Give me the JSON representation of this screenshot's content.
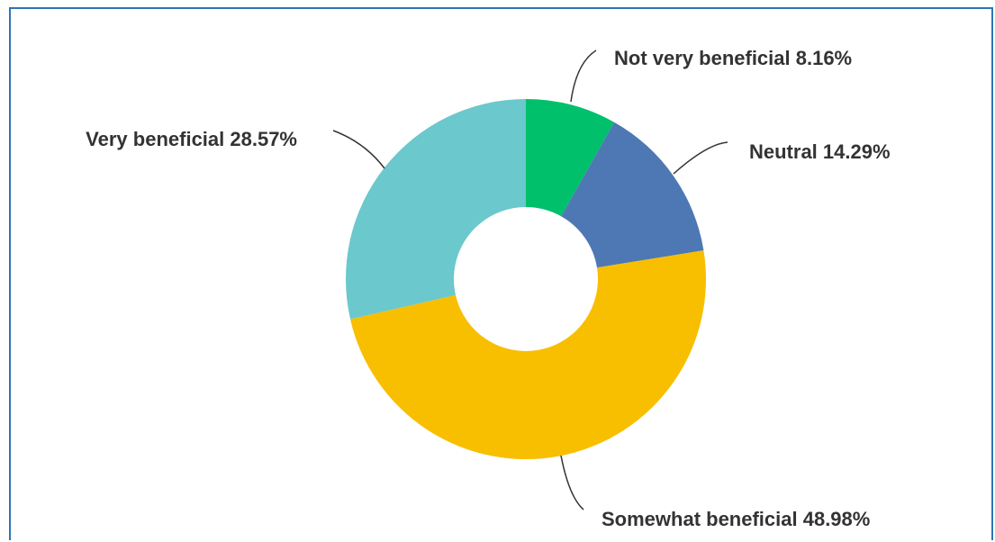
{
  "chart_data": {
    "type": "pie",
    "donut": true,
    "slices": [
      {
        "label": "Not very beneficial",
        "value": 8.16,
        "value_text": "8.16%",
        "color": "#00c06b"
      },
      {
        "label": "Neutral",
        "value": 14.29,
        "value_text": "14.29%",
        "color": "#4e78b4"
      },
      {
        "label": "Somewhat beneficial",
        "value": 48.98,
        "value_text": "48.98%",
        "color": "#f8be00"
      },
      {
        "label": "Very beneficial",
        "value": 28.57,
        "value_text": "28.57%",
        "color": "#6bc8cc"
      }
    ],
    "start_angle": "12 o'clock",
    "direction": "clockwise",
    "legend": "none"
  }
}
